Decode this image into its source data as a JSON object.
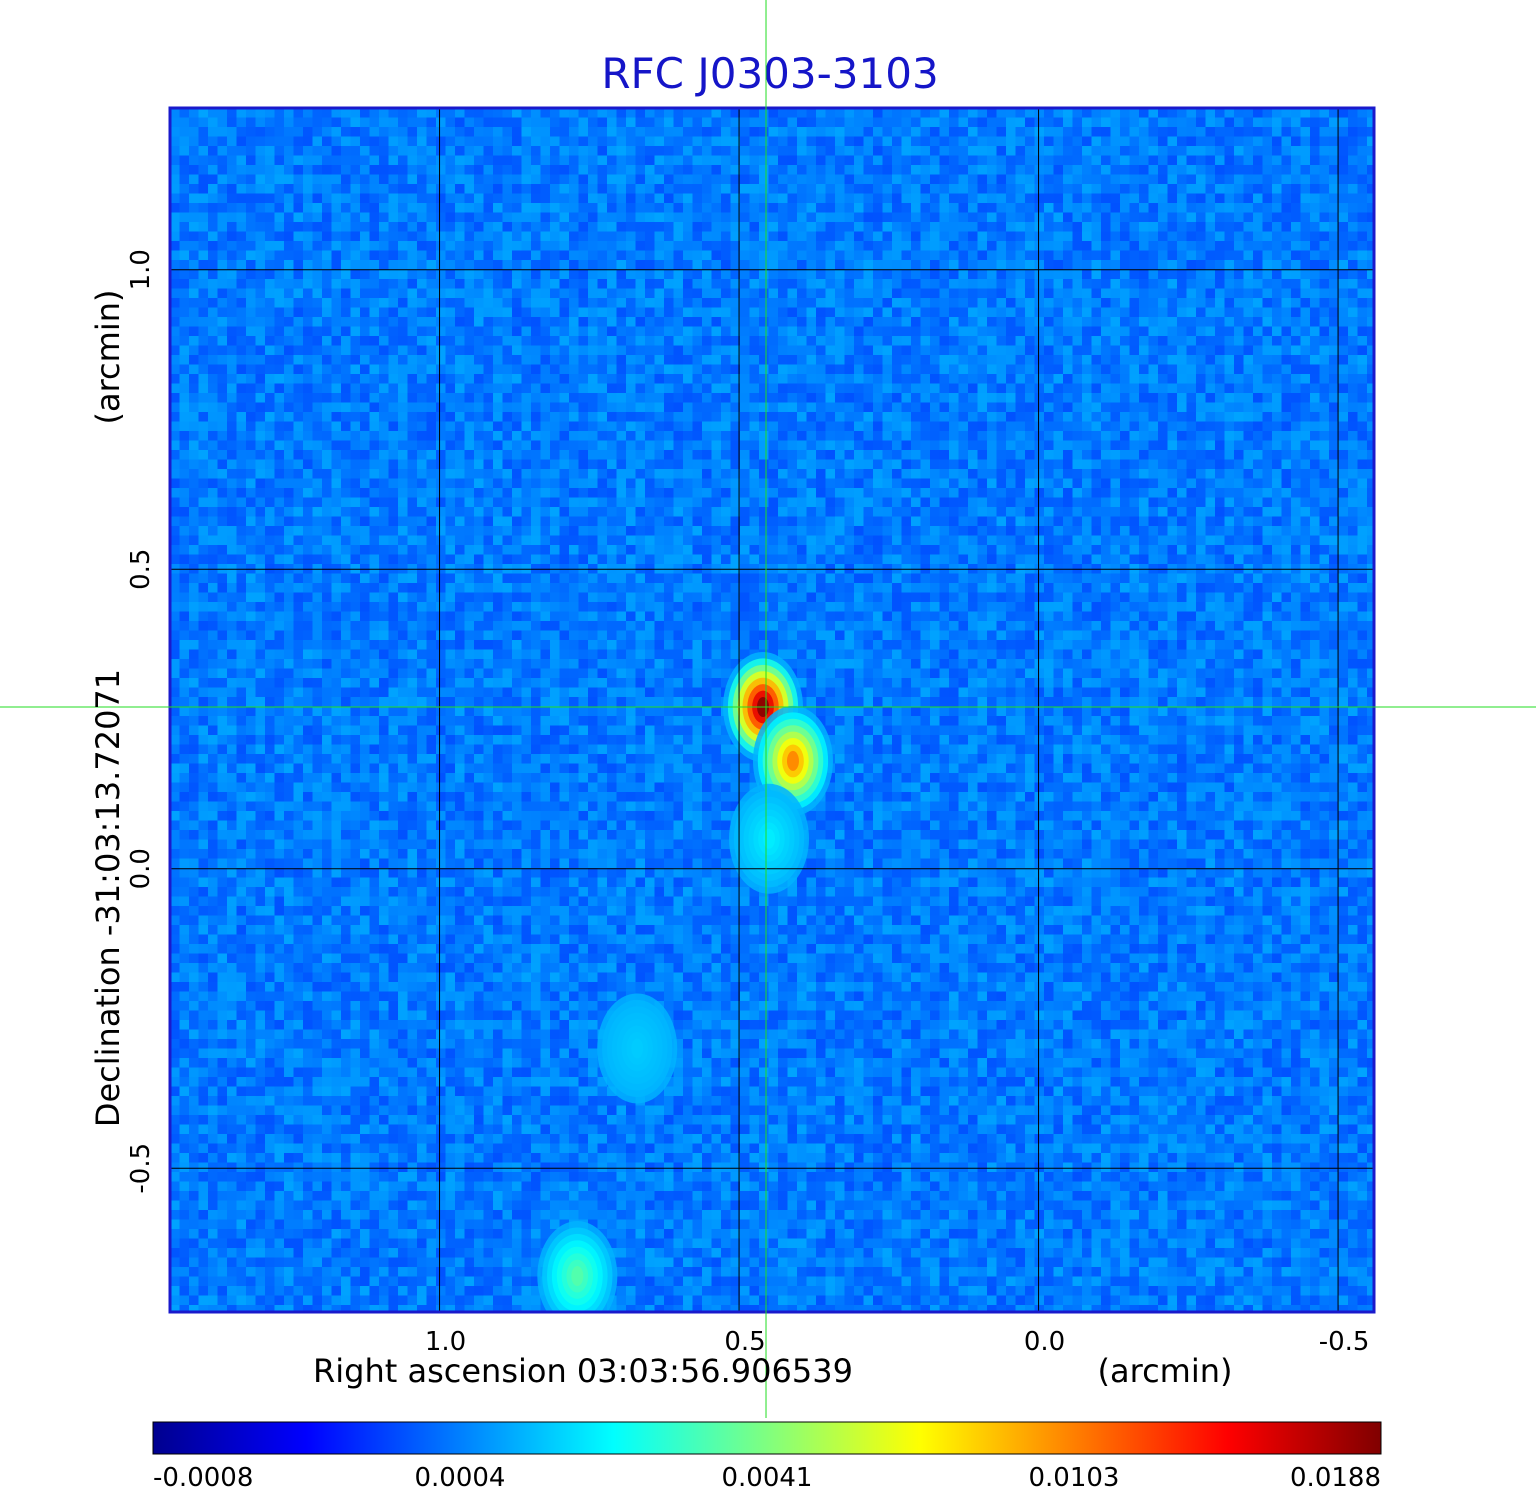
{
  "chart_data": {
    "type": "heatmap",
    "title": "RFC J0303-3103",
    "xlabel": "Right ascension  03:03:56.906539",
    "xunit": "(arcmin)",
    "ylabel_main": "Declination  -31:03:13.72071",
    "yunit": "(arcmin)",
    "x_range": [
      1.45,
      -0.56
    ],
    "y_range": [
      -0.74,
      1.27
    ],
    "x_ticks": [
      1.0,
      0.5,
      0.0,
      -0.5
    ],
    "x_tick_labels": [
      "1.0",
      "0.5",
      "0.0",
      "-0.5"
    ],
    "y_ticks": [
      1.0,
      0.5,
      0.0,
      -0.5
    ],
    "y_tick_labels": [
      "1.0",
      "0.5",
      "0.0",
      "-0.5"
    ],
    "crosshair": {
      "x": 0.455,
      "y": 0.27
    },
    "grid": true,
    "colormap": "jet",
    "colorbar": {
      "position": "bottom",
      "tick_labels": [
        "-0.0008",
        "0.0004",
        "0.0041",
        "0.0103",
        "0.0188"
      ]
    },
    "sources": [
      {
        "x": 0.46,
        "y": 0.27,
        "peak": 0.0188
      },
      {
        "x": 0.41,
        "y": 0.18,
        "peak": 0.0103
      },
      {
        "x": 0.45,
        "y": 0.05,
        "peak": 0.002
      },
      {
        "x": 0.67,
        "y": -0.3,
        "peak": 0.0015
      },
      {
        "x": 0.77,
        "y": -0.68,
        "peak": 0.0035
      }
    ]
  },
  "colors": {
    "title": "#1515c8",
    "frame": "#1a1acc",
    "grid": "#000000",
    "crosshair": "#22dd22",
    "background": "#2a72f0"
  }
}
